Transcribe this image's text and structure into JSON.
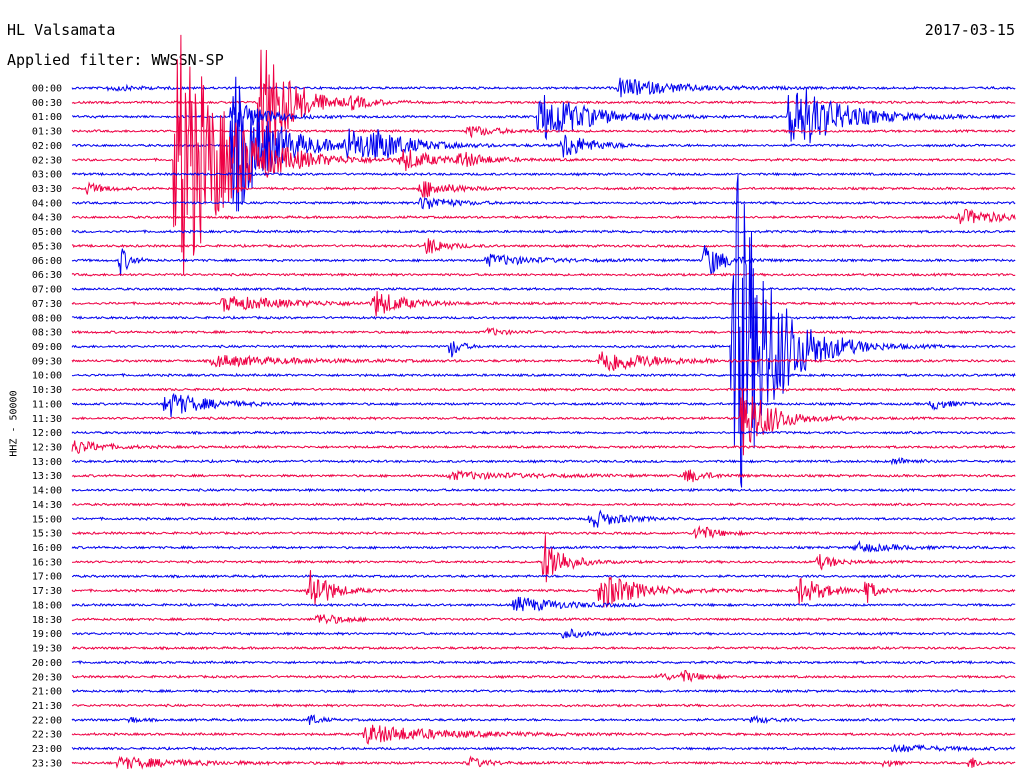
{
  "header": {
    "station": "HL Valsamata",
    "filter": "Applied filter: WWSSN-SP",
    "date": "2017-03-15"
  },
  "chart_data": {
    "type": "line",
    "ylabel": "HHZ - 50000",
    "colors": {
      "even": "#0000ee",
      "odd": "#ee0044"
    },
    "rows": [
      "00:00",
      "00:30",
      "01:00",
      "01:30",
      "02:00",
      "02:30",
      "03:00",
      "03:30",
      "04:00",
      "04:30",
      "05:00",
      "05:30",
      "06:00",
      "06:30",
      "07:00",
      "07:30",
      "08:00",
      "08:30",
      "09:00",
      "09:30",
      "10:00",
      "10:30",
      "11:00",
      "11:30",
      "12:00",
      "12:30",
      "13:00",
      "13:30",
      "14:00",
      "14:30",
      "15:00",
      "15:30",
      "16:00",
      "16:30",
      "17:00",
      "17:30",
      "18:00",
      "18:30",
      "19:00",
      "19:30",
      "20:00",
      "20:30",
      "21:00",
      "21:30",
      "22:00",
      "22:30",
      "23:00",
      "23:30"
    ],
    "events": [
      {
        "row": 0,
        "x": 0.04,
        "amp": 3,
        "dur": 0.03
      },
      {
        "row": 0,
        "x": 0.58,
        "amp": 10,
        "dur": 0.06
      },
      {
        "row": 1,
        "x": 0.2,
        "amp": 78,
        "dur": 0.03
      },
      {
        "row": 1,
        "x": 0.295,
        "amp": 6,
        "dur": 0.02
      },
      {
        "row": 2,
        "x": 0.17,
        "amp": 20,
        "dur": 0.03
      },
      {
        "row": 2,
        "x": 0.495,
        "amp": 28,
        "dur": 0.05
      },
      {
        "row": 2,
        "x": 0.76,
        "amp": 42,
        "dur": 0.05
      },
      {
        "row": 3,
        "x": 0.42,
        "amp": 6,
        "dur": 0.03
      },
      {
        "row": 4,
        "x": 0.17,
        "amp": 78,
        "dur": 0.04
      },
      {
        "row": 4,
        "x": 0.29,
        "amp": 16,
        "dur": 0.05
      },
      {
        "row": 4,
        "x": 0.32,
        "amp": 10,
        "dur": 0.03
      },
      {
        "row": 4,
        "x": 0.52,
        "amp": 14,
        "dur": 0.03
      },
      {
        "row": 5,
        "x": 0.11,
        "amp": 150,
        "dur": 0.05
      },
      {
        "row": 5,
        "x": 0.35,
        "amp": 12,
        "dur": 0.03
      },
      {
        "row": 5,
        "x": 0.41,
        "amp": 8,
        "dur": 0.03
      },
      {
        "row": 7,
        "x": 0.015,
        "amp": 6,
        "dur": 0.02
      },
      {
        "row": 7,
        "x": 0.37,
        "amp": 10,
        "dur": 0.03
      },
      {
        "row": 8,
        "x": 0.37,
        "amp": 8,
        "dur": 0.03
      },
      {
        "row": 9,
        "x": 0.94,
        "amp": 8,
        "dur": 0.05
      },
      {
        "row": 11,
        "x": 0.375,
        "amp": 10,
        "dur": 0.02
      },
      {
        "row": 12,
        "x": 0.05,
        "amp": 18,
        "dur": 0.01
      },
      {
        "row": 12,
        "x": 0.44,
        "amp": 6,
        "dur": 0.05
      },
      {
        "row": 12,
        "x": 0.67,
        "amp": 20,
        "dur": 0.02
      },
      {
        "row": 15,
        "x": 0.16,
        "amp": 8,
        "dur": 0.07
      },
      {
        "row": 15,
        "x": 0.32,
        "amp": 14,
        "dur": 0.03
      },
      {
        "row": 17,
        "x": 0.44,
        "amp": 4,
        "dur": 0.02
      },
      {
        "row": 18,
        "x": 0.4,
        "amp": 14,
        "dur": 0.01
      },
      {
        "row": 18,
        "x": 0.7,
        "amp": 200,
        "dur": 0.04
      },
      {
        "row": 19,
        "x": 0.15,
        "amp": 6,
        "dur": 0.08
      },
      {
        "row": 19,
        "x": 0.56,
        "amp": 14,
        "dur": 0.05
      },
      {
        "row": 22,
        "x": 0.1,
        "amp": 14,
        "dur": 0.04
      },
      {
        "row": 22,
        "x": 0.91,
        "amp": 6,
        "dur": 0.02
      },
      {
        "row": 23,
        "x": 0.71,
        "amp": 40,
        "dur": 0.03
      },
      {
        "row": 25,
        "x": 0.0,
        "amp": 8,
        "dur": 0.03
      },
      {
        "row": 26,
        "x": 0.87,
        "amp": 4,
        "dur": 0.02
      },
      {
        "row": 27,
        "x": 0.4,
        "amp": 4,
        "dur": 0.08
      },
      {
        "row": 27,
        "x": 0.65,
        "amp": 8,
        "dur": 0.02
      },
      {
        "row": 31,
        "x": 0.66,
        "amp": 10,
        "dur": 0.02
      },
      {
        "row": 30,
        "x": 0.55,
        "amp": 10,
        "dur": 0.03
      },
      {
        "row": 32,
        "x": 0.83,
        "amp": 5,
        "dur": 0.04
      },
      {
        "row": 33,
        "x": 0.5,
        "amp": 30,
        "dur": 0.02
      },
      {
        "row": 33,
        "x": 0.79,
        "amp": 8,
        "dur": 0.02
      },
      {
        "row": 35,
        "x": 0.25,
        "amp": 30,
        "dur": 0.02
      },
      {
        "row": 35,
        "x": 0.56,
        "amp": 20,
        "dur": 0.04
      },
      {
        "row": 35,
        "x": 0.77,
        "amp": 14,
        "dur": 0.03
      },
      {
        "row": 35,
        "x": 0.84,
        "amp": 14,
        "dur": 0.01
      },
      {
        "row": 36,
        "x": 0.47,
        "amp": 8,
        "dur": 0.05
      },
      {
        "row": 37,
        "x": 0.26,
        "amp": 6,
        "dur": 0.03
      },
      {
        "row": 38,
        "x": 0.52,
        "amp": 6,
        "dur": 0.02
      },
      {
        "row": 41,
        "x": 0.62,
        "amp": 4,
        "dur": 0.02
      },
      {
        "row": 41,
        "x": 0.645,
        "amp": 6,
        "dur": 0.02
      },
      {
        "row": 44,
        "x": 0.06,
        "amp": 4,
        "dur": 0.01
      },
      {
        "row": 44,
        "x": 0.25,
        "amp": 8,
        "dur": 0.01
      },
      {
        "row": 44,
        "x": 0.72,
        "amp": 4,
        "dur": 0.02
      },
      {
        "row": 45,
        "x": 0.31,
        "amp": 10,
        "dur": 0.08
      },
      {
        "row": 46,
        "x": 0.87,
        "amp": 4,
        "dur": 0.05
      },
      {
        "row": 47,
        "x": 0.05,
        "amp": 6,
        "dur": 0.07
      },
      {
        "row": 47,
        "x": 0.42,
        "amp": 6,
        "dur": 0.02
      },
      {
        "row": 47,
        "x": 0.86,
        "amp": 5,
        "dur": 0.01
      },
      {
        "row": 47,
        "x": 0.95,
        "amp": 8,
        "dur": 0.01
      }
    ]
  }
}
